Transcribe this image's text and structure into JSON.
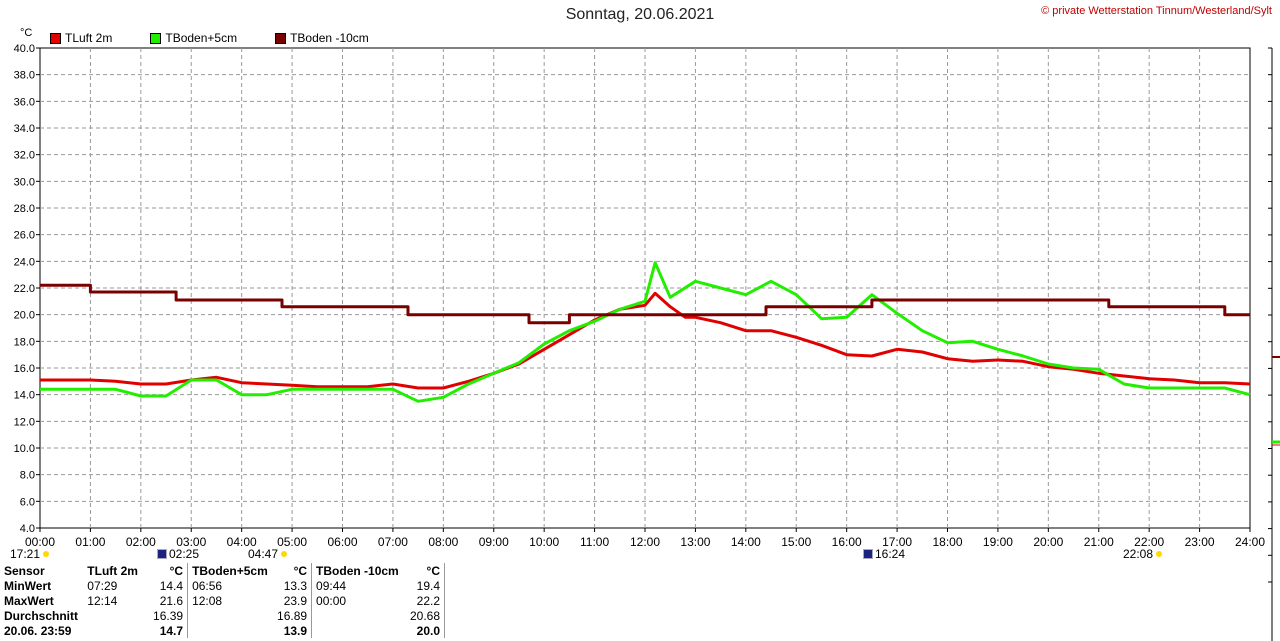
{
  "header": {
    "title": "Sonntag, 20.06.2021",
    "copyright": "© private Wetterstation Tinnum/Westerland/Sylt",
    "unit": "°C"
  },
  "colors": {
    "tluft": "#e00000",
    "tboden5": "#22ee00",
    "tboden10": "#7a0000",
    "grid": "#9a9a9a"
  },
  "chart_data": {
    "type": "line",
    "title": "Sonntag, 20.06.2021",
    "xlabel": "",
    "ylabel": "°C",
    "xlim": [
      0,
      24
    ],
    "ylim": [
      4,
      40
    ],
    "grid": true,
    "legend_position": "top-left",
    "x_tick_labels": [
      "00:00",
      "01:00",
      "02:00",
      "03:00",
      "04:00",
      "05:00",
      "06:00",
      "07:00",
      "08:00",
      "09:00",
      "10:00",
      "11:00",
      "12:00",
      "13:00",
      "14:00",
      "15:00",
      "16:00",
      "17:00",
      "18:00",
      "19:00",
      "20:00",
      "21:00",
      "22:00",
      "23:00",
      "24:00"
    ],
    "y_tick_labels": [
      "4.0",
      "6.0",
      "8.0",
      "10.0",
      "12.0",
      "14.0",
      "16.0",
      "18.0",
      "20.0",
      "22.0",
      "24.0",
      "26.0",
      "28.0",
      "30.0",
      "32.0",
      "34.0",
      "36.0",
      "38.0",
      "40.0"
    ],
    "series": [
      {
        "name": "TLuft 2m",
        "color": "#e00000",
        "x": [
          0,
          0.5,
          1,
          1.5,
          2,
          2.5,
          3,
          3.5,
          4,
          4.5,
          5,
          5.5,
          6,
          6.5,
          7,
          7.5,
          8,
          8.5,
          9,
          9.5,
          10,
          10.5,
          11,
          11.5,
          12,
          12.2,
          12.5,
          12.8,
          13,
          13.5,
          14,
          14.5,
          15,
          15.5,
          16,
          16.5,
          17,
          17.5,
          18,
          18.5,
          19,
          19.5,
          20,
          20.5,
          21,
          21.5,
          22,
          22.5,
          23,
          23.5,
          24
        ],
        "values": [
          15.1,
          15.1,
          15.1,
          15.0,
          14.8,
          14.8,
          15.1,
          15.3,
          14.9,
          14.8,
          14.7,
          14.6,
          14.6,
          14.6,
          14.8,
          14.5,
          14.5,
          15.0,
          15.6,
          16.3,
          17.4,
          18.5,
          19.6,
          20.4,
          20.7,
          21.6,
          20.6,
          19.8,
          19.8,
          19.4,
          18.8,
          18.8,
          18.3,
          17.7,
          17.0,
          16.9,
          17.4,
          17.2,
          16.7,
          16.5,
          16.6,
          16.5,
          16.1,
          15.9,
          15.6,
          15.4,
          15.2,
          15.1,
          14.9,
          14.9,
          14.8
        ]
      },
      {
        "name": "TBoden+5cm",
        "color": "#22ee00",
        "x": [
          0,
          0.5,
          1,
          1.5,
          2,
          2.5,
          3,
          3.5,
          4,
          4.5,
          5,
          5.5,
          6,
          6.5,
          7,
          7.5,
          8,
          8.5,
          9,
          9.5,
          10,
          10.5,
          11,
          11.5,
          12,
          12.2,
          12.5,
          13,
          13.5,
          14,
          14.5,
          15,
          15.5,
          16,
          16.5,
          17,
          17.5,
          18,
          18.5,
          19,
          19.5,
          20,
          20.5,
          21,
          21.5,
          22,
          22.5,
          23,
          23.5,
          24
        ],
        "values": [
          14.4,
          14.4,
          14.4,
          14.4,
          13.9,
          13.9,
          15.1,
          15.1,
          14.0,
          14.0,
          14.4,
          14.4,
          14.4,
          14.4,
          14.4,
          13.5,
          13.8,
          14.8,
          15.6,
          16.4,
          17.8,
          18.8,
          19.5,
          20.4,
          21.0,
          23.9,
          21.3,
          22.5,
          22.0,
          21.5,
          22.5,
          21.5,
          19.7,
          19.8,
          21.5,
          20.1,
          18.8,
          17.9,
          18.0,
          17.4,
          16.9,
          16.3,
          16.0,
          15.9,
          14.8,
          14.5,
          14.5,
          14.5,
          14.5,
          14.0
        ]
      },
      {
        "name": "TBoden -10cm",
        "color": "#7a0000",
        "x": [
          0,
          1,
          1,
          2.7,
          2.7,
          4.8,
          4.8,
          7.3,
          7.3,
          9.7,
          9.7,
          10.5,
          10.5,
          14.4,
          14.4,
          16.5,
          16.5,
          21.2,
          21.2,
          23.5,
          23.5,
          24
        ],
        "values": [
          22.2,
          22.2,
          21.7,
          21.7,
          21.1,
          21.1,
          20.6,
          20.6,
          20.0,
          20.0,
          19.4,
          19.4,
          20.0,
          20.0,
          20.6,
          20.6,
          21.1,
          21.1,
          20.6,
          20.6,
          20.0,
          20.0
        ]
      }
    ]
  },
  "sun_moon": {
    "moonrise_label": "17:21",
    "moonset_label": "02:25",
    "sunrise_label": "04:47",
    "moon2_label": "16:24",
    "sunset_label": "22:08"
  },
  "stats": {
    "header": {
      "sensor": "Sensor",
      "c1": "TLuft 2m",
      "u1": "°C",
      "c2": "TBoden+5cm",
      "u2": "°C",
      "c3": "TBoden -10cm",
      "u3": "°C"
    },
    "min": {
      "label": "MinWert",
      "t1": "07:29",
      "v1": "14.4",
      "t2": "06:56",
      "v2": "13.3",
      "t3": "09:44",
      "v3": "19.4"
    },
    "max": {
      "label": "MaxWert",
      "t1": "12:14",
      "v1": "21.6",
      "t2": "12:08",
      "v2": "23.9",
      "t3": "00:00",
      "v3": "22.2"
    },
    "avg": {
      "label": "Durchschnitt",
      "v1": "16.39",
      "v2": "16.89",
      "v3": "20.68"
    },
    "last": {
      "label": "20.06. 23:59",
      "v1": "14.7",
      "v2": "13.9",
      "v3": "20.0"
    }
  }
}
